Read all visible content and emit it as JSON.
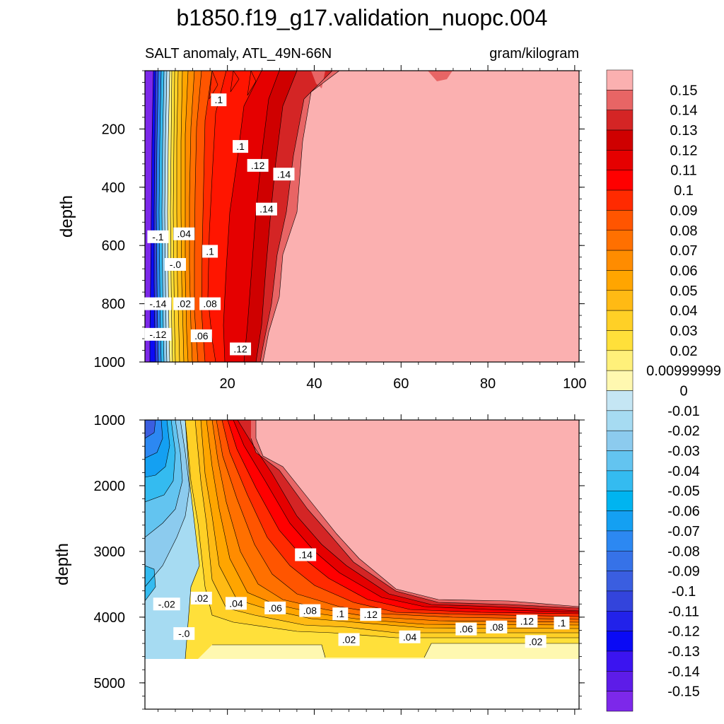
{
  "chart_data": {
    "type": "contour",
    "title": "b1850.f19_g17.validation_nuopc.004",
    "variable_label": "SALT anomaly, ATL_49N-66N",
    "units_label": "gram/kilogram",
    "ylabel": "depth",
    "panels": [
      {
        "name": "upper",
        "xlim": [
          1,
          101
        ],
        "ylim": [
          0,
          1000
        ],
        "y_inverted": true,
        "x_ticks": [
          20,
          40,
          60,
          80,
          100
        ],
        "x_tick_labels": [
          "20",
          "40",
          "60",
          "80",
          "100"
        ],
        "y_ticks": [
          200,
          400,
          600,
          800,
          1000
        ],
        "y_tick_labels": [
          "200",
          "400",
          "600",
          "800",
          "1000"
        ],
        "contour_labels": [
          {
            "text": ".1",
            "x": 18,
            "y": 100
          },
          {
            "text": ".1",
            "x": 23,
            "y": 260
          },
          {
            "text": ".12",
            "x": 27,
            "y": 325
          },
          {
            "text": ".14",
            "x": 33,
            "y": 355
          },
          {
            "text": ".14",
            "x": 29,
            "y": 475
          },
          {
            "text": "-.1",
            "x": 4,
            "y": 570
          },
          {
            "text": ".04",
            "x": 10,
            "y": 560
          },
          {
            "text": ".1",
            "x": 16,
            "y": 620
          },
          {
            "text": "-.0",
            "x": 8,
            "y": 665
          },
          {
            "text": "-.14",
            "x": 4,
            "y": 800
          },
          {
            "text": ".02",
            "x": 10,
            "y": 800
          },
          {
            "text": ".08",
            "x": 16,
            "y": 800
          },
          {
            "text": "-.12",
            "x": 4,
            "y": 905
          },
          {
            "text": ".06",
            "x": 14,
            "y": 910
          },
          {
            "text": ".12",
            "x": 23,
            "y": 955
          }
        ]
      },
      {
        "name": "lower",
        "xlim": [
          1,
          101
        ],
        "ylim": [
          1000,
          5400
        ],
        "y_inverted": true,
        "y_ticks": [
          1000,
          2000,
          3000,
          4000,
          5000
        ],
        "y_tick_labels": [
          "1000",
          "2000",
          "3000",
          "4000",
          "5000"
        ],
        "contour_labels": [
          {
            "text": ".14",
            "x": 38,
            "y": 3050
          },
          {
            "text": "-.02",
            "x": 6,
            "y": 3800
          },
          {
            "text": ".02",
            "x": 14,
            "y": 3710
          },
          {
            "text": ".04",
            "x": 22,
            "y": 3790
          },
          {
            "text": ".06",
            "x": 31,
            "y": 3860
          },
          {
            "text": ".08",
            "x": 39,
            "y": 3900
          },
          {
            "text": ".1",
            "x": 46,
            "y": 3950
          },
          {
            "text": ".12",
            "x": 53,
            "y": 3960
          },
          {
            "text": "-.0",
            "x": 10,
            "y": 4250
          },
          {
            "text": ".02",
            "x": 48,
            "y": 4340
          },
          {
            "text": ".04",
            "x": 62,
            "y": 4300
          },
          {
            "text": ".06",
            "x": 75,
            "y": 4180
          },
          {
            "text": ".08",
            "x": 82,
            "y": 4150
          },
          {
            "text": ".12",
            "x": 89,
            "y": 4060
          },
          {
            "text": ".1",
            "x": 97,
            "y": 4090
          },
          {
            "text": ".02",
            "x": 91,
            "y": 4370
          }
        ]
      }
    ],
    "colorbar": {
      "labels": [
        "0.15",
        "0.14",
        "0.13",
        "0.12",
        "0.11",
        "0.1",
        "0.09",
        "0.08",
        "0.07",
        "0.06",
        "0.05",
        "0.04",
        "0.03",
        "0.02",
        "0.00999999",
        "0",
        "-0.01",
        "-0.02",
        "-0.03",
        "-0.04",
        "-0.05",
        "-0.06",
        "-0.07",
        "-0.08",
        "-0.09",
        "-0.1",
        "-0.11",
        "-0.12",
        "-0.13",
        "-0.14",
        "-0.15"
      ],
      "colors": [
        "#fbb0b0",
        "#e86565",
        "#d42525",
        "#cf0000",
        "#e50000",
        "#ff0000",
        "#ff2a00",
        "#ff5500",
        "#ff7000",
        "#ff8c00",
        "#ffa500",
        "#ffba14",
        "#ffd026",
        "#ffe03a",
        "#fff07a",
        "#fff8b0",
        "#c5e6f4",
        "#a6dbf2",
        "#8ccbee",
        "#63c4f0",
        "#34bbf0",
        "#00b4f0",
        "#14a0f2",
        "#2c88f2",
        "#3672e8",
        "#3a5ee0",
        "#3344dc",
        "#2222ea",
        "#0a0af5",
        "#3b14f0",
        "#5d1ce8",
        "#7d28ea"
      ]
    }
  }
}
